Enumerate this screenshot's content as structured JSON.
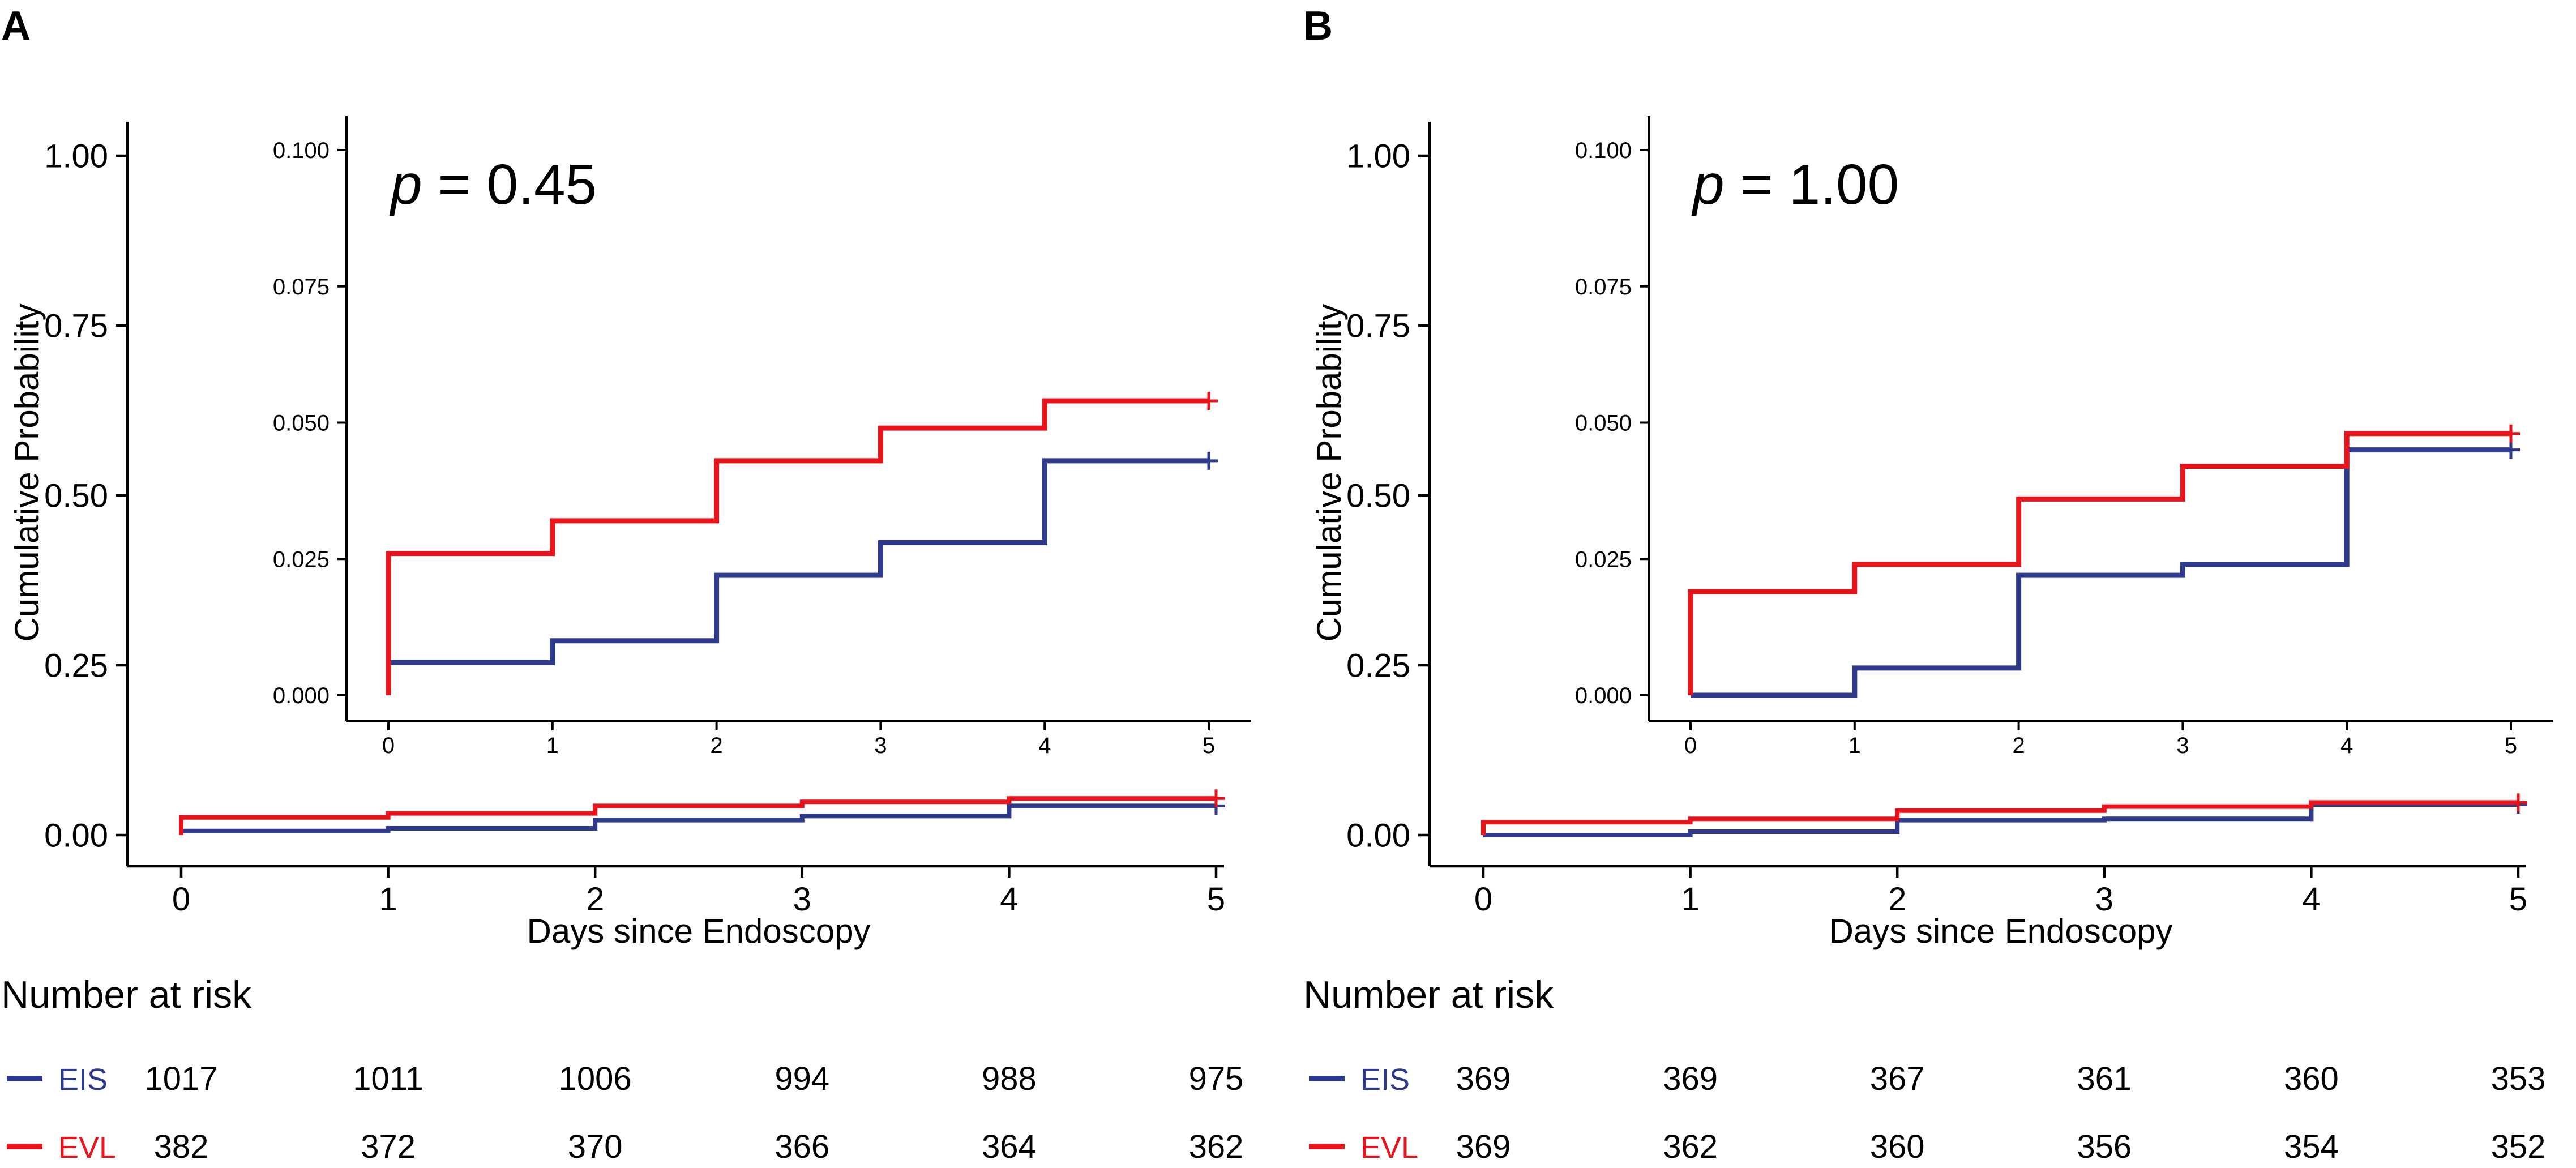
{
  "colors": {
    "EIS": "#2e3a8c",
    "EVL": "#e8141b",
    "axis": "#000000"
  },
  "panels": [
    {
      "panel_label": "A",
      "p_symbol": "p",
      "p_text": " = 0.45",
      "risk_title": "Number at risk",
      "risk_rows": [
        {
          "label": "EIS",
          "series": "EIS",
          "values": [
            "1017",
            "1011",
            "1006",
            "994",
            "988",
            "975"
          ]
        },
        {
          "label": "EVL",
          "series": "EVL",
          "values": [
            "382",
            "372",
            "370",
            "366",
            "364",
            "362"
          ]
        }
      ]
    },
    {
      "panel_label": "B",
      "p_symbol": "p",
      "p_text": " = 1.00",
      "risk_title": "Number at risk",
      "risk_rows": [
        {
          "label": "EIS",
          "series": "EIS",
          "values": [
            "369",
            "369",
            "367",
            "361",
            "360",
            "353"
          ]
        },
        {
          "label": "EVL",
          "series": "EVL",
          "values": [
            "369",
            "362",
            "360",
            "356",
            "354",
            "352"
          ]
        }
      ]
    }
  ],
  "chart_data": [
    {
      "type": "line",
      "step": true,
      "panel": "A",
      "role": "main",
      "xlabel": "Days since Endoscopy",
      "ylabel": "Cumulative Probability",
      "xlim": [
        0,
        5
      ],
      "ylim": [
        0,
        1
      ],
      "xticks": [
        "0",
        "1",
        "2",
        "3",
        "4",
        "5"
      ],
      "yticks": [
        "0.00",
        "0.25",
        "0.50",
        "0.75",
        "1.00"
      ],
      "yticks_values": [
        0,
        0.25,
        0.5,
        0.75,
        1.0
      ],
      "series": [
        {
          "name": "EIS",
          "x": [
            0,
            1,
            2,
            3,
            4,
            5
          ],
          "values": [
            0.006,
            0.01,
            0.022,
            0.028,
            0.043,
            0.043
          ]
        },
        {
          "name": "EVL",
          "x": [
            0,
            1,
            2,
            3,
            4,
            5
          ],
          "values": [
            0.026,
            0.032,
            0.043,
            0.049,
            0.054,
            0.054
          ]
        }
      ]
    },
    {
      "type": "line",
      "step": true,
      "panel": "A",
      "role": "inset",
      "xlim": [
        0,
        5
      ],
      "ylim": [
        0,
        0.1
      ],
      "xticks": [
        "0",
        "1",
        "2",
        "3",
        "4",
        "5"
      ],
      "yticks": [
        "0.000",
        "0.025",
        "0.050",
        "0.075",
        "0.100"
      ],
      "yticks_values": [
        0,
        0.025,
        0.05,
        0.075,
        0.1
      ],
      "series": [
        {
          "name": "EIS",
          "x": [
            0,
            1,
            2,
            3,
            4,
            5
          ],
          "values": [
            0.006,
            0.01,
            0.022,
            0.028,
            0.043,
            0.043
          ]
        },
        {
          "name": "EVL",
          "x": [
            0,
            1,
            2,
            3,
            4,
            5
          ],
          "values": [
            0.026,
            0.032,
            0.043,
            0.049,
            0.054,
            0.054
          ]
        }
      ]
    },
    {
      "type": "line",
      "step": true,
      "panel": "B",
      "role": "main",
      "xlabel": "Days since Endoscopy",
      "ylabel": "Cumulative Probability",
      "xlim": [
        0,
        5
      ],
      "ylim": [
        0,
        1
      ],
      "xticks": [
        "0",
        "1",
        "2",
        "3",
        "4",
        "5"
      ],
      "yticks": [
        "0.00",
        "0.25",
        "0.50",
        "0.75",
        "1.00"
      ],
      "yticks_values": [
        0,
        0.25,
        0.5,
        0.75,
        1.0
      ],
      "series": [
        {
          "name": "EIS",
          "x": [
            0,
            1,
            2,
            3,
            4,
            5
          ],
          "values": [
            0.0,
            0.005,
            0.022,
            0.024,
            0.045,
            0.045
          ]
        },
        {
          "name": "EVL",
          "x": [
            0,
            1,
            2,
            3,
            4,
            5
          ],
          "values": [
            0.019,
            0.024,
            0.036,
            0.042,
            0.048,
            0.048
          ]
        }
      ]
    },
    {
      "type": "line",
      "step": true,
      "panel": "B",
      "role": "inset",
      "xlim": [
        0,
        5
      ],
      "ylim": [
        0,
        0.1
      ],
      "xticks": [
        "0",
        "1",
        "2",
        "3",
        "4",
        "5"
      ],
      "yticks": [
        "0.000",
        "0.025",
        "0.050",
        "0.075",
        "0.100"
      ],
      "yticks_values": [
        0,
        0.025,
        0.05,
        0.075,
        0.1
      ],
      "series": [
        {
          "name": "EIS",
          "x": [
            0,
            1,
            2,
            3,
            4,
            5
          ],
          "values": [
            0.0,
            0.005,
            0.022,
            0.024,
            0.045,
            0.045
          ]
        },
        {
          "name": "EVL",
          "x": [
            0,
            1,
            2,
            3,
            4,
            5
          ],
          "values": [
            0.019,
            0.024,
            0.036,
            0.042,
            0.048,
            0.048
          ]
        }
      ]
    }
  ]
}
